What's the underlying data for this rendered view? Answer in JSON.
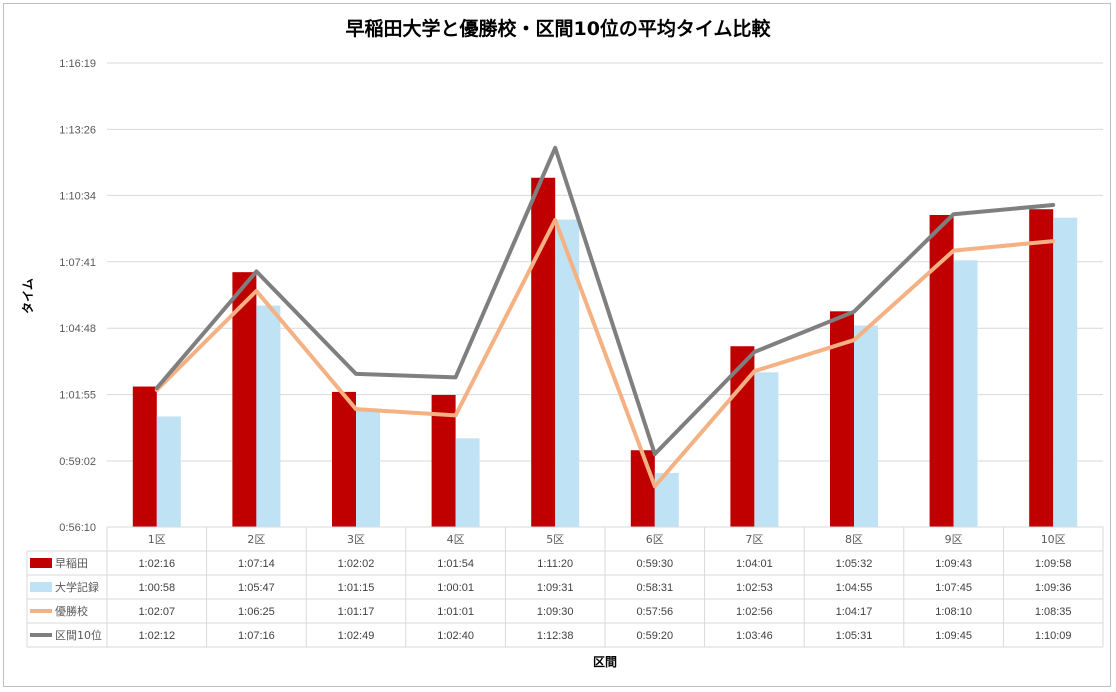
{
  "chart_data": {
    "type": "bar",
    "title": "早稲田大学と優勝校・区間10位の平均タイム比較",
    "xlabel": "区間",
    "ylabel": "タイム",
    "yticks": [
      "0:56:10",
      "0:59:02",
      "1:01:55",
      "1:04:48",
      "1:07:41",
      "1:10:34",
      "1:13:26",
      "1:16:19"
    ],
    "ylim": [
      "0:56:10",
      "1:16:19"
    ],
    "grid": true,
    "legend": "data-table",
    "categories": [
      "1区",
      "2区",
      "3区",
      "4区",
      "5区",
      "6区",
      "7区",
      "8区",
      "9区",
      "10区"
    ],
    "series": [
      {
        "name": "早稲田",
        "kind": "bar",
        "color": "#c00000",
        "values": [
          "1:02:16",
          "1:07:14",
          "1:02:02",
          "1:01:54",
          "1:11:20",
          "0:59:30",
          "1:04:01",
          "1:05:32",
          "1:09:43",
          "1:09:58"
        ]
      },
      {
        "name": "大学記録",
        "kind": "bar",
        "color": "#bfe3f5",
        "values": [
          "1:00:58",
          "1:05:47",
          "1:01:15",
          "1:00:01",
          "1:09:31",
          "0:58:31",
          "1:02:53",
          "1:04:55",
          "1:07:45",
          "1:09:36"
        ]
      },
      {
        "name": "優勝校",
        "kind": "line",
        "color": "#f4b183",
        "values": [
          "1:02:07",
          "1:06:25",
          "1:01:17",
          "1:01:01",
          "1:09:30",
          "0:57:56",
          "1:02:56",
          "1:04:17",
          "1:08:10",
          "1:08:35"
        ]
      },
      {
        "name": "区間10位",
        "kind": "line",
        "color": "#7f7f7f",
        "values": [
          "1:02:12",
          "1:07:16",
          "1:02:49",
          "1:02:40",
          "1:12:38",
          "0:59:20",
          "1:03:46",
          "1:05:31",
          "1:09:45",
          "1:10:09"
        ]
      }
    ]
  }
}
